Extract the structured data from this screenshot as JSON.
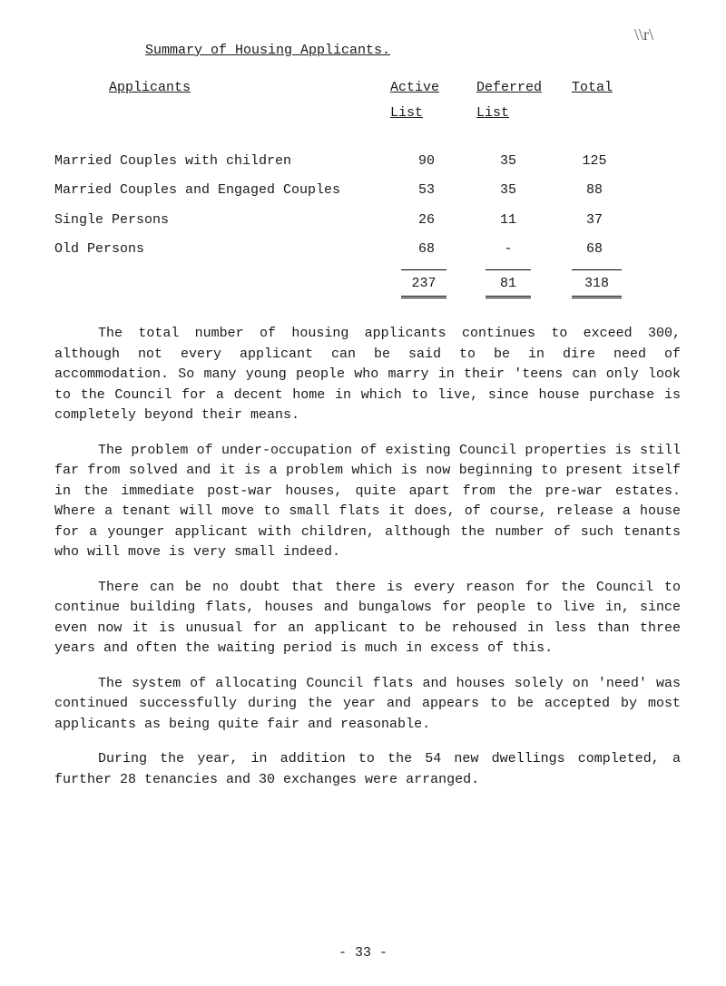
{
  "handwritten_note": "\\\\r\\",
  "title": "Summary of Housing Applicants.",
  "columns": {
    "applicants": "Applicants",
    "active": "Active",
    "active_sub": "List",
    "deferred": "Deferred",
    "deferred_sub": "List",
    "total": "Total"
  },
  "rows": [
    {
      "label": "Married Couples with children",
      "active": "90",
      "deferred": "35",
      "total": "125"
    },
    {
      "label": "Married Couples and Engaged Couples",
      "active": "53",
      "deferred": "35",
      "total": "88"
    },
    {
      "label": "Single Persons",
      "active": "26",
      "deferred": "11",
      "total": "37"
    },
    {
      "label": "Old Persons",
      "active": "68",
      "deferred": "-",
      "total": "68"
    }
  ],
  "totals": {
    "active": "237",
    "deferred": "81",
    "total": "318"
  },
  "paragraphs": [
    "The total number of housing applicants continues to exceed 300, although not every applicant can be said to be in dire need of accommodation. So many young people who marry in their 'teens can only look to the Council for a decent home in which to live, since house purchase is completely beyond their means.",
    "The problem of under-occupation of existing Council properties is still far from solved and it is a problem which is now beginning to present itself in the immediate post-war houses, quite apart from the pre-war estates.  Where a tenant will move to small flats it does, of course, release a house for a younger applicant with children, although the number of such tenants who will move is very small indeed.",
    "There can be no doubt that there is every reason for the Council to continue building flats, houses and bungalows for people to live in, since even now it is unusual for an applicant to be rehoused in less than three years and often the waiting period is much in excess of this.",
    "The system of allocating Council flats and houses solely on 'need' was continued successfully during the year and appears to be accepted by most applicants as being quite fair and reasonable.",
    "During the year, in addition to the 54 new dwellings completed, a further 28 tenancies and 30 exchanges were arranged."
  ],
  "page_number": "- 33 -"
}
